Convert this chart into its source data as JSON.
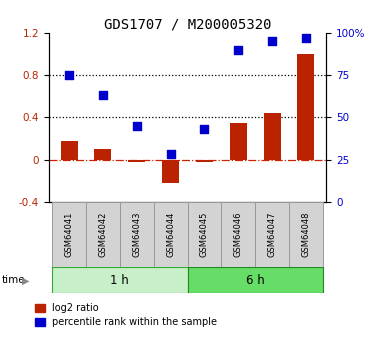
{
  "title": "GDS1707 / M200005320",
  "samples": [
    "GSM64041",
    "GSM64042",
    "GSM64043",
    "GSM64044",
    "GSM64045",
    "GSM64046",
    "GSM64047",
    "GSM64048"
  ],
  "log2_ratio": [
    0.18,
    0.1,
    -0.02,
    -0.22,
    -0.02,
    0.35,
    0.44,
    1.0
  ],
  "percentile_rank": [
    75,
    63,
    45,
    28,
    43,
    90,
    95,
    97
  ],
  "ylim_left": [
    -0.4,
    1.2
  ],
  "ylim_right": [
    0,
    100
  ],
  "yticks_left": [
    -0.4,
    0.0,
    0.4,
    0.8,
    1.2
  ],
  "yticks_right": [
    0,
    25,
    50,
    75,
    100
  ],
  "ytick_labels_right": [
    "0",
    "25",
    "50",
    "75",
    "100%"
  ],
  "hlines": [
    0.4,
    0.8
  ],
  "bar_color": "#bb2200",
  "dot_color": "#0000cc",
  "zero_line_color": "#cc2200",
  "background_color": "#ffffff",
  "bar_width": 0.5,
  "dot_size": 40,
  "group1_label": "1 h",
  "group2_label": "6 h",
  "group1_color": "#c8f0c8",
  "group2_color": "#66dd66",
  "legend_bar": "log2 ratio",
  "legend_dot": "percentile rank within the sample"
}
